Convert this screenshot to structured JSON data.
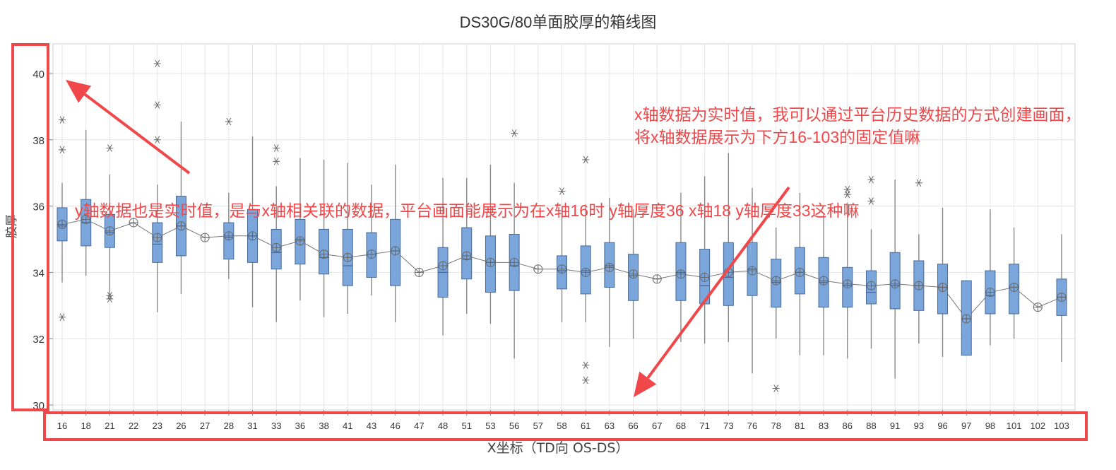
{
  "page": {
    "title": "DS30G/80单面胶厚的箱线图",
    "ylabel": "胶厚",
    "xlabel": "X坐标（TD向 OS-DS）"
  },
  "annotations": {
    "x_note": "x轴数据为实时值，我可以通过平台历史数据的方式创建画面，将x轴数据展示为下方16-103的固定值嘛",
    "y_note": "y轴数据也是实时值，是与x轴相关联的数据，平台画面能展示为在x轴16时 y轴厚度36 x轴18 y轴厚度33这种嘛",
    "highlight_color": "#f0484a"
  },
  "colors": {
    "box_fill": "#7aa6dc",
    "box_stroke": "#4a6a96",
    "whisker": "#888888",
    "grid": "#e6e6e6",
    "mean_line": "#777777"
  },
  "chart_data": {
    "type": "box",
    "title": "DS30G/80单面胶厚的箱线图",
    "xlabel": "X坐标（TD向 OS-DS）",
    "ylabel": "胶厚",
    "ylim": [
      30,
      40.5
    ],
    "yticks": [
      30,
      32,
      34,
      36,
      38,
      40
    ],
    "grid": true,
    "legend": "none",
    "categories": [
      "16",
      "18",
      "21",
      "22",
      "23",
      "26",
      "27",
      "28",
      "31",
      "33",
      "36",
      "38",
      "41",
      "43",
      "46",
      "47",
      "48",
      "51",
      "53",
      "56",
      "57",
      "58",
      "61",
      "63",
      "66",
      "67",
      "68",
      "71",
      "73",
      "76",
      "78",
      "81",
      "83",
      "86",
      "88",
      "91",
      "93",
      "96",
      "97",
      "98",
      "101",
      "102",
      "103"
    ],
    "boxes": [
      {
        "x": "16",
        "min": 33.7,
        "q1": 34.95,
        "median": 35.4,
        "q3": 35.95,
        "max": 36.7,
        "mean": 35.45,
        "outliers": [
          38.6,
          37.7,
          32.65
        ]
      },
      {
        "x": "18",
        "min": 33.9,
        "q1": 34.8,
        "median": 35.5,
        "q3": 36.2,
        "max": 38.3,
        "mean": 35.6,
        "outliers": []
      },
      {
        "x": "21",
        "min": 33.3,
        "q1": 34.75,
        "median": 35.2,
        "q3": 35.75,
        "max": 36.95,
        "mean": 35.25,
        "outliers": [
          37.75,
          33.3,
          33.2
        ]
      },
      {
        "x": "22",
        "min": 35.5,
        "q1": 35.5,
        "median": 35.5,
        "q3": 35.5,
        "max": 35.5,
        "mean": 35.5,
        "outliers": []
      },
      {
        "x": "23",
        "min": 32.8,
        "q1": 34.3,
        "median": 34.85,
        "q3": 35.5,
        "max": 36.65,
        "mean": 35.05,
        "outliers": [
          40.3,
          39.05,
          38.0
        ]
      },
      {
        "x": "26",
        "min": 33.35,
        "q1": 34.5,
        "median": 35.4,
        "q3": 36.3,
        "max": 38.55,
        "mean": 35.4,
        "outliers": []
      },
      {
        "x": "27",
        "min": 35.05,
        "q1": 35.05,
        "median": 35.05,
        "q3": 35.05,
        "max": 35.05,
        "mean": 35.05,
        "outliers": []
      },
      {
        "x": "28",
        "min": 33.8,
        "q1": 34.4,
        "median": 35.05,
        "q3": 35.5,
        "max": 36.4,
        "mean": 35.1,
        "outliers": [
          38.55
        ]
      },
      {
        "x": "31",
        "min": 32.95,
        "q1": 34.3,
        "median": 35.1,
        "q3": 35.9,
        "max": 38.1,
        "mean": 35.1,
        "outliers": []
      },
      {
        "x": "33",
        "min": 32.5,
        "q1": 34.1,
        "median": 34.6,
        "q3": 35.3,
        "max": 36.6,
        "mean": 34.75,
        "outliers": [
          37.75,
          37.35
        ]
      },
      {
        "x": "36",
        "min": 33.15,
        "q1": 34.25,
        "median": 35.0,
        "q3": 35.6,
        "max": 37.45,
        "mean": 34.95,
        "outliers": []
      },
      {
        "x": "38",
        "min": 32.65,
        "q1": 33.95,
        "median": 34.45,
        "q3": 35.3,
        "max": 37.4,
        "mean": 34.55,
        "outliers": []
      },
      {
        "x": "41",
        "min": 32.75,
        "q1": 33.6,
        "median": 34.2,
        "q3": 35.3,
        "max": 37.3,
        "mean": 34.45,
        "outliers": []
      },
      {
        "x": "43",
        "min": 33.3,
        "q1": 33.85,
        "median": 34.55,
        "q3": 35.2,
        "max": 36.65,
        "mean": 34.55,
        "outliers": []
      },
      {
        "x": "46",
        "min": 32.5,
        "q1": 33.6,
        "median": 34.65,
        "q3": 35.6,
        "max": 37.25,
        "mean": 34.65,
        "outliers": []
      },
      {
        "x": "47",
        "min": 34.0,
        "q1": 34.0,
        "median": 34.0,
        "q3": 34.0,
        "max": 34.0,
        "mean": 34.0,
        "outliers": []
      },
      {
        "x": "48",
        "min": 32.1,
        "q1": 33.25,
        "median": 34.0,
        "q3": 34.75,
        "max": 36.85,
        "mean": 34.2,
        "outliers": []
      },
      {
        "x": "51",
        "min": 32.75,
        "q1": 33.8,
        "median": 34.4,
        "q3": 35.35,
        "max": 36.85,
        "mean": 34.5,
        "outliers": []
      },
      {
        "x": "53",
        "min": 32.45,
        "q1": 33.4,
        "median": 34.3,
        "q3": 35.1,
        "max": 37.25,
        "mean": 34.3,
        "outliers": []
      },
      {
        "x": "56",
        "min": 31.4,
        "q1": 33.45,
        "median": 34.2,
        "q3": 35.15,
        "max": 36.7,
        "mean": 34.3,
        "outliers": [
          38.2
        ]
      },
      {
        "x": "57",
        "min": 34.1,
        "q1": 34.1,
        "median": 34.1,
        "q3": 34.1,
        "max": 34.1,
        "mean": 34.1,
        "outliers": []
      },
      {
        "x": "58",
        "min": 32.5,
        "q1": 33.5,
        "median": 34.05,
        "q3": 34.5,
        "max": 35.95,
        "mean": 34.1,
        "outliers": [
          36.45
        ]
      },
      {
        "x": "61",
        "min": 32.5,
        "q1": 33.35,
        "median": 34.05,
        "q3": 34.8,
        "max": 36.05,
        "mean": 34.0,
        "outliers": [
          37.4,
          31.2,
          30.75
        ]
      },
      {
        "x": "63",
        "min": 31.75,
        "q1": 33.55,
        "median": 34.2,
        "q3": 34.9,
        "max": 36.25,
        "mean": 34.15,
        "outliers": []
      },
      {
        "x": "66",
        "min": 32.0,
        "q1": 33.15,
        "median": 33.9,
        "q3": 34.55,
        "max": 35.9,
        "mean": 33.95,
        "outliers": []
      },
      {
        "x": "67",
        "min": 33.8,
        "q1": 33.8,
        "median": 33.8,
        "q3": 33.8,
        "max": 33.8,
        "mean": 33.8,
        "outliers": []
      },
      {
        "x": "68",
        "min": 31.9,
        "q1": 33.15,
        "median": 34.0,
        "q3": 34.9,
        "max": 36.4,
        "mean": 33.95,
        "outliers": []
      },
      {
        "x": "71",
        "min": 31.85,
        "q1": 33.05,
        "median": 33.6,
        "q3": 34.7,
        "max": 36.9,
        "mean": 33.85,
        "outliers": []
      },
      {
        "x": "73",
        "min": 31.9,
        "q1": 33.0,
        "median": 33.85,
        "q3": 34.9,
        "max": 37.6,
        "mean": 34.0,
        "outliers": []
      },
      {
        "x": "76",
        "min": 30.95,
        "q1": 33.3,
        "median": 34.1,
        "q3": 34.9,
        "max": 36.55,
        "mean": 34.05,
        "outliers": []
      },
      {
        "x": "78",
        "min": 32.0,
        "q1": 32.95,
        "median": 33.7,
        "q3": 34.4,
        "max": 35.35,
        "mean": 33.75,
        "outliers": [
          30.5
        ]
      },
      {
        "x": "81",
        "min": 31.5,
        "q1": 33.35,
        "median": 34.0,
        "q3": 34.75,
        "max": 36.4,
        "mean": 34.0,
        "outliers": []
      },
      {
        "x": "83",
        "min": 31.5,
        "q1": 32.95,
        "median": 33.7,
        "q3": 34.45,
        "max": 35.75,
        "mean": 33.75,
        "outliers": []
      },
      {
        "x": "86",
        "min": 31.4,
        "q1": 32.95,
        "median": 33.6,
        "q3": 34.15,
        "max": 36.1,
        "mean": 33.65,
        "outliers": [
          36.5,
          36.35
        ]
      },
      {
        "x": "88",
        "min": 31.7,
        "q1": 33.05,
        "median": 33.4,
        "q3": 34.05,
        "max": 35.3,
        "mean": 33.6,
        "outliers": [
          36.8,
          36.15
        ]
      },
      {
        "x": "91",
        "min": 30.8,
        "q1": 32.9,
        "median": 33.6,
        "q3": 34.6,
        "max": 36.8,
        "mean": 33.65,
        "outliers": []
      },
      {
        "x": "93",
        "min": 31.85,
        "q1": 32.85,
        "median": 33.6,
        "q3": 34.35,
        "max": 35.15,
        "mean": 33.6,
        "outliers": [
          36.7
        ]
      },
      {
        "x": "96",
        "min": 31.45,
        "q1": 32.75,
        "median": 33.55,
        "q3": 34.25,
        "max": 35.95,
        "mean": 33.55,
        "outliers": []
      },
      {
        "x": "97",
        "min": 31.5,
        "q1": 31.5,
        "median": 32.6,
        "q3": 33.75,
        "max": 33.75,
        "mean": 32.6,
        "outliers": []
      },
      {
        "x": "98",
        "min": 31.8,
        "q1": 32.75,
        "median": 33.3,
        "q3": 34.05,
        "max": 35.9,
        "mean": 33.4,
        "outliers": []
      },
      {
        "x": "101",
        "min": 32.0,
        "q1": 32.75,
        "median": 33.55,
        "q3": 34.25,
        "max": 35.35,
        "mean": 33.55,
        "outliers": []
      },
      {
        "x": "102",
        "min": 32.95,
        "q1": 32.95,
        "median": 32.95,
        "q3": 32.95,
        "max": 32.95,
        "mean": 32.95,
        "outliers": []
      },
      {
        "x": "103",
        "min": 31.3,
        "q1": 32.7,
        "median": 33.25,
        "q3": 33.8,
        "max": 35.15,
        "mean": 33.25,
        "outliers": []
      }
    ]
  }
}
